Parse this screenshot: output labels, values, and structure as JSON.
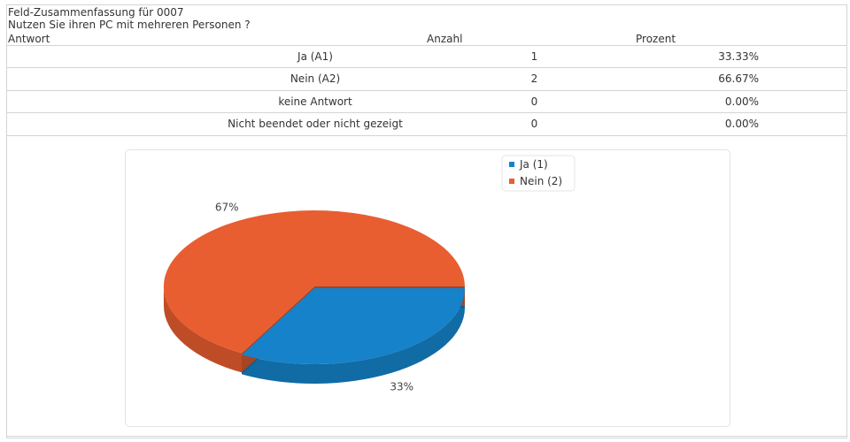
{
  "header": {
    "title": "Feld-Zusammenfassung für 0007",
    "question": "Nutzen Sie ihren PC mit mehreren Personen ?"
  },
  "table": {
    "columns": [
      "Antwort",
      "Anzahl",
      "Prozent"
    ],
    "rows": [
      {
        "answer": "Ja (A1)",
        "count": "1",
        "percent": "33.33%"
      },
      {
        "answer": "Nein (A2)",
        "count": "2",
        "percent": "66.67%"
      },
      {
        "answer": "keine Antwort",
        "count": "0",
        "percent": "0.00%"
      },
      {
        "answer": "Nicht beendet oder nicht gezeigt",
        "count": "0",
        "percent": "0.00%"
      }
    ]
  },
  "chart_data": {
    "type": "pie",
    "style": "3d",
    "categories": [
      "Ja (1)",
      "Nein (2)"
    ],
    "values": [
      33,
      67
    ],
    "slice_labels": [
      "33%",
      "67%"
    ],
    "colors": [
      "#1582c9",
      "#e85e30"
    ],
    "legend": {
      "position": "top-right",
      "entries": [
        "Ja (1)",
        "Nein (2)"
      ]
    }
  }
}
